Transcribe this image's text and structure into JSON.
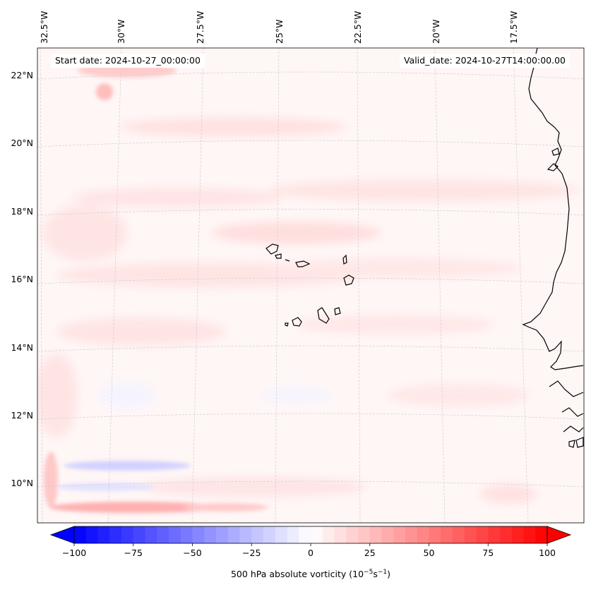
{
  "map": {
    "start_date_text": "Start date: 2024-10-27_00:00:00",
    "valid_date_text": "Valid_date: 2024-10-27T14:00:00.00",
    "longitude_labels": [
      "32.5°W",
      "30°W",
      "27.5°W",
      "25°W",
      "22.5°W",
      "20°W",
      "17.5°W"
    ],
    "latitude_labels": [
      "22°N",
      "20°N",
      "18°N",
      "16°N",
      "14°N",
      "12°N",
      "10°N"
    ],
    "field": "500 hPa absolute vorticity",
    "coastline_color": "#000000",
    "gridline_color": "#c8c8c8"
  },
  "colorbar": {
    "label_prefix": "500 hPa absolute vorticity (10",
    "label_exp1": "−5",
    "label_mid": "s",
    "label_exp2": "−1",
    "label_suffix": ")",
    "tick_labels": [
      "−100",
      "−75",
      "−50",
      "−25",
      "0",
      "25",
      "50",
      "75",
      "100"
    ],
    "min": -100,
    "max": 100,
    "levels": 41,
    "extend": "both",
    "negative_color": "#0000ff",
    "positive_color": "#ff0000",
    "neutral_color": "#ffffff"
  }
}
